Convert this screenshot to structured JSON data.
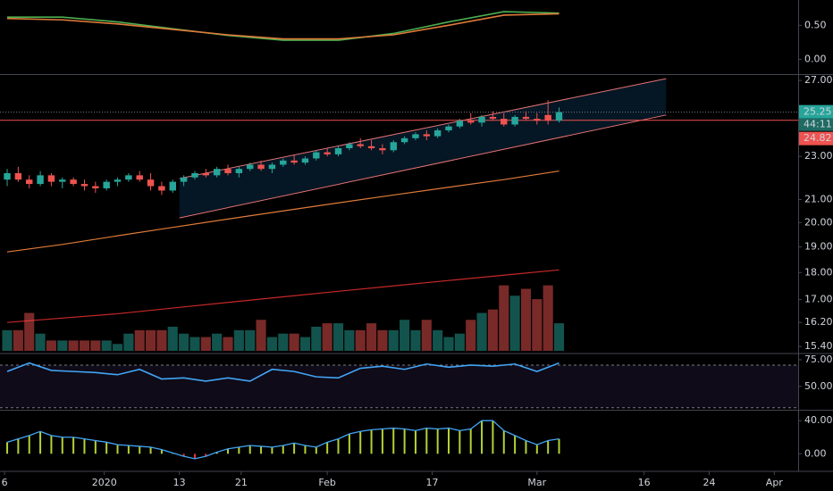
{
  "chart_data": [
    {
      "type": "line",
      "series": [
        {
          "color": "#4caf50",
          "x": [
            0,
            5,
            10,
            15,
            20,
            25,
            30,
            35,
            40,
            45,
            50
          ],
          "values": [
            0.62,
            0.62,
            0.55,
            0.45,
            0.35,
            0.28,
            0.28,
            0.38,
            0.55,
            0.7,
            0.68
          ]
        },
        {
          "color": "#e07b39",
          "x": [
            0,
            5,
            10,
            15,
            20,
            25,
            30,
            35,
            40,
            45,
            50
          ],
          "values": [
            0.6,
            0.58,
            0.52,
            0.44,
            0.36,
            0.3,
            0.3,
            0.36,
            0.5,
            0.65,
            0.67
          ]
        }
      ],
      "ylim": [
        -0.205,
        0.846
      ],
      "yticks": [
        {
          "value": 0.5,
          "label": "0.50"
        },
        {
          "value": 0,
          "label": "0.00"
        }
      ]
    },
    {
      "type": "candlestick",
      "open": [
        21.9,
        22.2,
        21.9,
        21.7,
        22.1,
        21.8,
        21.9,
        21.7,
        21.6,
        21.5,
        21.8,
        21.9,
        22.1,
        21.9,
        21.6,
        21.4,
        21.8,
        22.0,
        22.2,
        22.1,
        22.4,
        22.2,
        22.4,
        22.6,
        22.4,
        22.6,
        22.8,
        22.7,
        22.9,
        23.2,
        23.1,
        23.4,
        23.6,
        23.5,
        23.4,
        23.3,
        23.7,
        23.9,
        24.1,
        24.0,
        24.3,
        24.5,
        24.8,
        24.7,
        25.0,
        24.9,
        24.6,
        25.0,
        24.9,
        25.1,
        24.8
      ],
      "high": [
        22.4,
        22.5,
        22.1,
        22.3,
        22.2,
        22.0,
        22.0,
        21.9,
        21.8,
        21.9,
        22.0,
        22.2,
        22.3,
        22.2,
        21.8,
        21.9,
        22.1,
        22.3,
        22.4,
        22.5,
        22.6,
        22.5,
        22.7,
        22.8,
        22.7,
        22.9,
        23.1,
        23.0,
        23.3,
        23.4,
        23.5,
        23.7,
        23.9,
        23.8,
        23.6,
        23.8,
        24.0,
        24.2,
        24.3,
        24.4,
        24.6,
        24.9,
        25.2,
        25.1,
        25.3,
        25.2,
        25.1,
        25.3,
        25.2,
        25.9,
        25.5
      ],
      "low": [
        21.6,
        21.8,
        21.5,
        21.6,
        21.6,
        21.5,
        21.6,
        21.4,
        21.3,
        21.4,
        21.6,
        21.8,
        21.8,
        21.4,
        21.2,
        21.3,
        21.6,
        21.9,
        22.0,
        22.0,
        22.1,
        22.0,
        22.3,
        22.3,
        22.2,
        22.5,
        22.6,
        22.6,
        22.8,
        23.0,
        23.0,
        23.3,
        23.4,
        23.3,
        23.1,
        23.2,
        23.6,
        23.8,
        23.8,
        23.9,
        24.2,
        24.4,
        24.6,
        24.5,
        24.8,
        24.5,
        24.5,
        24.8,
        24.6,
        24.6,
        24.7
      ],
      "close": [
        22.2,
        21.9,
        21.7,
        22.1,
        21.8,
        21.9,
        21.7,
        21.6,
        21.5,
        21.8,
        21.9,
        22.1,
        21.9,
        21.6,
        21.4,
        21.8,
        22.0,
        22.2,
        22.1,
        22.4,
        22.2,
        22.4,
        22.6,
        22.4,
        22.6,
        22.8,
        22.7,
        22.9,
        23.2,
        23.1,
        23.4,
        23.6,
        23.5,
        23.4,
        23.3,
        23.7,
        23.9,
        24.1,
        24.0,
        24.3,
        24.5,
        24.8,
        24.7,
        25.0,
        24.9,
        24.6,
        25.0,
        24.9,
        24.8,
        24.8,
        25.25
      ],
      "up_color": "#26a69a",
      "down_color": "#ef5350",
      "lines": [
        {
          "color": "#e07b39",
          "x": [
            0,
            5,
            10,
            15,
            20,
            25,
            30,
            35,
            40,
            45,
            50
          ],
          "values": [
            18.8,
            19.1,
            19.45,
            19.8,
            20.15,
            20.5,
            20.85,
            21.2,
            21.55,
            21.9,
            22.3
          ]
        },
        {
          "color": "#c62828",
          "x": [
            0,
            5,
            10,
            15,
            20,
            25,
            30,
            35,
            40,
            45,
            50
          ],
          "values": [
            16.2,
            16.35,
            16.5,
            16.7,
            16.9,
            17.1,
            17.3,
            17.5,
            17.7,
            17.9,
            18.1
          ]
        }
      ],
      "channel": {
        "x": [
          15.6,
          59.7
        ],
        "upper": [
          21.95,
          27.1
        ],
        "lower": [
          20.2,
          25.1
        ]
      },
      "last_price": 25.25,
      "countdown": "44:11",
      "marker_price": 24.82,
      "log_scale": true,
      "ylim": [
        15.2,
        27.26
      ],
      "yticks": [
        {
          "value": 27,
          "label": "27.00"
        },
        {
          "value": 23,
          "label": "23.00"
        },
        {
          "value": 21,
          "label": "21.00"
        },
        {
          "value": 20,
          "label": "20.00"
        },
        {
          "value": 19,
          "label": "19.00"
        },
        {
          "value": 18,
          "label": "18.00"
        },
        {
          "value": 17,
          "label": "17.00"
        },
        {
          "value": 16.2,
          "label": "16.20"
        },
        {
          "value": 15.4,
          "label": "15.40"
        }
      ],
      "xlim": [
        -0.65,
        71.66
      ],
      "xticks": [
        {
          "value": -0.24,
          "label": "6"
        },
        {
          "value": 8.8,
          "label": "2020"
        },
        {
          "value": 15.6,
          "label": "13"
        },
        {
          "value": 21.2,
          "label": "21"
        },
        {
          "value": 29,
          "label": "Feb"
        },
        {
          "value": 38.5,
          "label": "17"
        },
        {
          "value": 48,
          "label": "Mar"
        },
        {
          "value": 57.7,
          "label": "16"
        },
        {
          "value": 63.6,
          "label": "24"
        },
        {
          "value": 69.5,
          "label": "Apr"
        }
      ]
    },
    {
      "type": "bar",
      "values": [
        0.6,
        0.6,
        1.1,
        0.5,
        0.3,
        0.3,
        0.3,
        0.3,
        0.3,
        0.3,
        0.2,
        0.5,
        0.6,
        0.6,
        0.6,
        0.7,
        0.5,
        0.4,
        0.4,
        0.5,
        0.4,
        0.6,
        0.6,
        0.9,
        0.4,
        0.5,
        0.5,
        0.4,
        0.7,
        0.8,
        0.8,
        0.6,
        0.6,
        0.8,
        0.6,
        0.6,
        0.9,
        0.6,
        0.9,
        0.6,
        0.4,
        0.5,
        0.9,
        1.1,
        1.2,
        1.9,
        1.6,
        1.8,
        1.5,
        1.9,
        0.8
      ],
      "up_color": "#26a69a",
      "down_color": "#ef5350",
      "ylim": [
        0,
        5
      ]
    },
    {
      "type": "line",
      "series": [
        {
          "color": "#42a5f5",
          "x": [
            0,
            2,
            4,
            6,
            8,
            10,
            12,
            14,
            16,
            18,
            20,
            22,
            24,
            26,
            28,
            30,
            32,
            34,
            36,
            38,
            40,
            42,
            44,
            46,
            48,
            50
          ],
          "values": [
            64,
            72,
            65,
            64,
            63,
            61,
            66,
            57,
            58,
            55,
            58,
            55,
            66,
            64,
            59,
            58,
            67,
            69,
            66,
            71,
            68,
            70,
            69,
            71,
            64,
            72
          ]
        }
      ],
      "bands": [
        30,
        70
      ],
      "ylim": [
        29,
        80
      ],
      "yticks": [
        {
          "value": 75,
          "label": "75.00"
        },
        {
          "value": 50,
          "label": "50.00"
        }
      ]
    },
    {
      "type": "column",
      "values": [
        14,
        18,
        22,
        27,
        22,
        20,
        20,
        18,
        16,
        14,
        11,
        10,
        9,
        8,
        5,
        1,
        -3,
        -6,
        -3,
        2,
        6,
        8,
        10,
        9,
        8,
        10,
        13,
        10,
        8,
        14,
        18,
        24,
        27,
        29,
        30,
        31,
        30,
        28,
        31,
        30,
        31,
        28,
        30,
        40,
        40,
        28,
        22,
        16,
        11,
        16,
        18
      ],
      "pos_color": "#b2d235",
      "neg_color": "#e53935",
      "line_color": "#42a5f5",
      "ylim": [
        -18,
        51
      ],
      "yticks": [
        {
          "value": 40,
          "label": "40.00"
        },
        {
          "value": 0,
          "label": "0.00"
        }
      ]
    }
  ]
}
